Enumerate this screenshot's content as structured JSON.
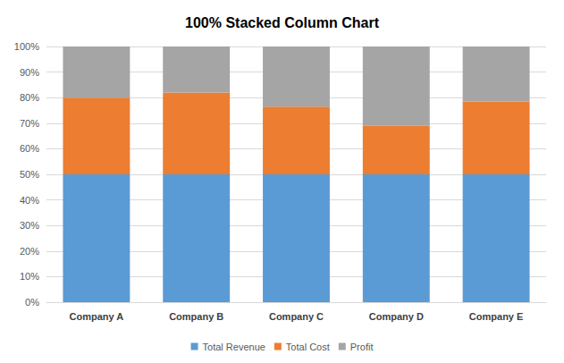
{
  "chart_data": {
    "type": "bar",
    "title": "100% Stacked Column Chart",
    "categories": [
      "Company A",
      "Company B",
      "Company C",
      "Company D",
      "Company E"
    ],
    "series": [
      {
        "name": "Total Revenue",
        "color": "#5b9bd5",
        "values": [
          50,
          50,
          50,
          50,
          50
        ]
      },
      {
        "name": "Total Cost",
        "color": "#ed7d31",
        "values": [
          30,
          32,
          26.5,
          19,
          28.5
        ]
      },
      {
        "name": "Profit",
        "color": "#a5a5a5",
        "values": [
          20,
          18,
          23.5,
          31,
          21.5
        ]
      }
    ],
    "ylim": [
      0,
      100
    ],
    "yticks": [
      {
        "value": 0,
        "label": "0%"
      },
      {
        "value": 10,
        "label": "10%"
      },
      {
        "value": 20,
        "label": "20%"
      },
      {
        "value": 30,
        "label": "30%"
      },
      {
        "value": 40,
        "label": "40%"
      },
      {
        "value": 50,
        "label": "50%"
      },
      {
        "value": 60,
        "label": "60%"
      },
      {
        "value": 70,
        "label": "70%"
      },
      {
        "value": 80,
        "label": "80%"
      },
      {
        "value": 90,
        "label": "90%"
      },
      {
        "value": 100,
        "label": "100%"
      }
    ],
    "stacked": true,
    "grid": true,
    "legend": "bottom"
  }
}
